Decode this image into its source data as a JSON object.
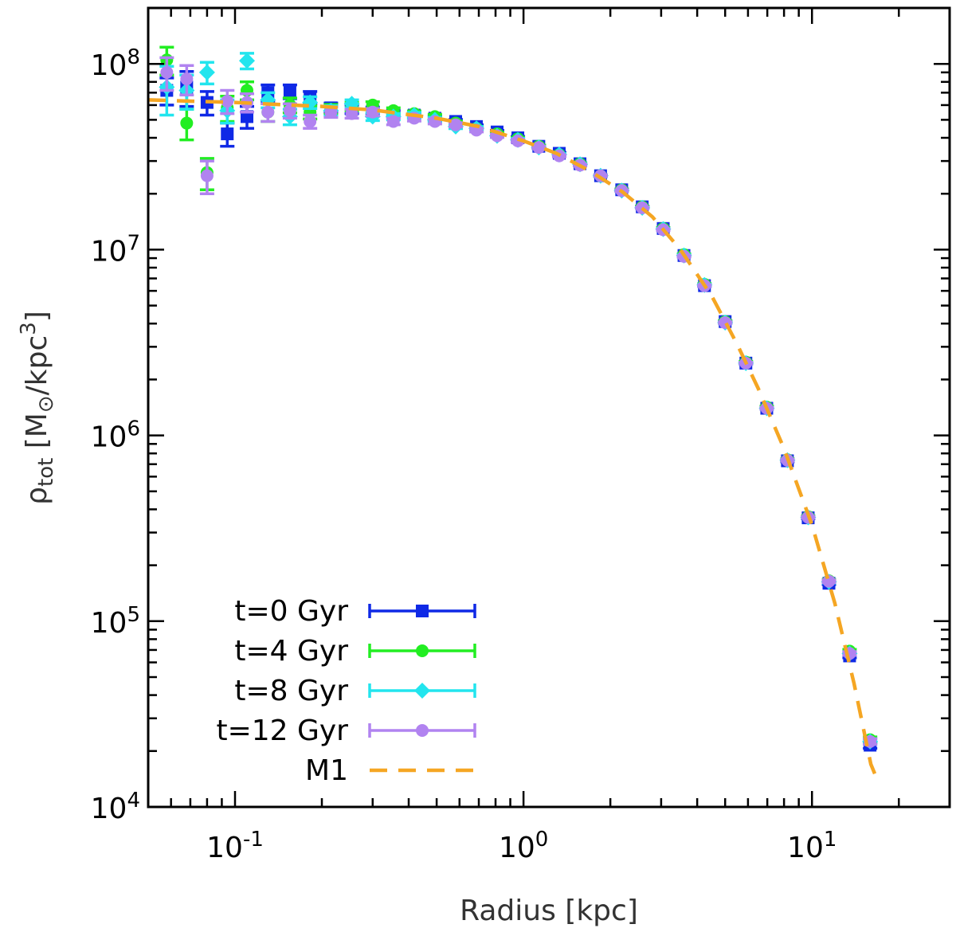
{
  "chart_data": {
    "type": "scatter",
    "xlabel": "Radius [kpc]",
    "ylabel_main": "ρ",
    "ylabel_sub": "tot",
    "ylabel_unit_open": " [M",
    "ylabel_unit_sun": "⊙",
    "ylabel_unit_mid": "/kpc",
    "ylabel_unit_sup": "3",
    "ylabel_unit_close": "]",
    "x_scale": "log",
    "y_scale": "log",
    "xlim": [
      0.05,
      30
    ],
    "ylim": [
      10000,
      200000000
    ],
    "x_ticks": [
      {
        "value": 0.1,
        "base": "10",
        "exp": "-1"
      },
      {
        "value": 1,
        "base": "10",
        "exp": "0"
      },
      {
        "value": 10,
        "base": "10",
        "exp": "1"
      }
    ],
    "y_ticks": [
      {
        "value": 10000,
        "base": "10",
        "exp": "4"
      },
      {
        "value": 100000,
        "base": "10",
        "exp": "5"
      },
      {
        "value": 1000000,
        "base": "10",
        "exp": "6"
      },
      {
        "value": 10000000,
        "base": "10",
        "exp": "7"
      },
      {
        "value": 100000000,
        "base": "10",
        "exp": "8"
      }
    ],
    "legend_position": "bottom-left",
    "grid": false,
    "series": [
      {
        "name": "t=0 Gyr",
        "color": "#0f29e6",
        "marker": "square",
        "points": [
          {
            "x": 0.058,
            "y": 72000000,
            "err": 12000000
          },
          {
            "x": 0.068,
            "y": 75000000,
            "err": 16000000
          },
          {
            "x": 0.08,
            "y": 62000000,
            "err": 9000000
          },
          {
            "x": 0.094,
            "y": 42000000,
            "err": 6000000
          },
          {
            "x": 0.11,
            "y": 52000000,
            "err": 7000000
          },
          {
            "x": 0.13,
            "y": 70000000,
            "err": 7000000
          },
          {
            "x": 0.155,
            "y": 71000000,
            "err": 6000000
          },
          {
            "x": 0.182,
            "y": 66000000,
            "err": 5000000
          },
          {
            "x": 0.215,
            "y": 58000000,
            "err": 3500000
          },
          {
            "x": 0.254,
            "y": 57000000,
            "err": 3000000
          },
          {
            "x": 0.3,
            "y": 56000000,
            "err": 2500000
          },
          {
            "x": 0.354,
            "y": 54000000,
            "err": 2000000
          },
          {
            "x": 0.418,
            "y": 53000000,
            "err": 1800000
          },
          {
            "x": 0.493,
            "y": 51000000,
            "err": 1500000
          },
          {
            "x": 0.582,
            "y": 49000000,
            "err": 1200000
          },
          {
            "x": 0.687,
            "y": 46000000,
            "err": 1000000
          },
          {
            "x": 0.81,
            "y": 43000000,
            "err": 800000
          },
          {
            "x": 0.956,
            "y": 40000000,
            "err": 700000
          },
          {
            "x": 1.13,
            "y": 36000000,
            "err": 500000
          },
          {
            "x": 1.33,
            "y": 33000000,
            "err": 400000
          },
          {
            "x": 1.57,
            "y": 29000000,
            "err": 300000
          },
          {
            "x": 1.85,
            "y": 25000000,
            "err": 250000
          },
          {
            "x": 2.19,
            "y": 21000000,
            "err": 200000
          },
          {
            "x": 2.58,
            "y": 17000000,
            "err": 150000
          },
          {
            "x": 3.05,
            "y": 13000000,
            "err": 100000
          },
          {
            "x": 3.6,
            "y": 9300000,
            "err": 80000
          },
          {
            "x": 4.24,
            "y": 6400000,
            "err": 60000
          },
          {
            "x": 5.0,
            "y": 4100000,
            "err": 40000
          },
          {
            "x": 5.9,
            "y": 2450000,
            "err": 25000
          },
          {
            "x": 6.97,
            "y": 1400000,
            "err": 15000
          },
          {
            "x": 8.22,
            "y": 730000,
            "err": 8000
          },
          {
            "x": 9.7,
            "y": 360000,
            "err": 4000
          },
          {
            "x": 11.45,
            "y": 160000,
            "err": 2500
          },
          {
            "x": 13.5,
            "y": 65000,
            "err": 1500
          },
          {
            "x": 15.9,
            "y": 21500,
            "err": 800
          }
        ]
      },
      {
        "name": "t=4 Gyr",
        "color": "#22ee22",
        "marker": "circle",
        "points": [
          {
            "x": 0.058,
            "y": 105000000,
            "err": 18000000
          },
          {
            "x": 0.068,
            "y": 48000000,
            "err": 9000000
          },
          {
            "x": 0.08,
            "y": 26000000,
            "err": 5000000
          },
          {
            "x": 0.094,
            "y": 58000000,
            "err": 9000000
          },
          {
            "x": 0.11,
            "y": 72000000,
            "err": 8000000
          },
          {
            "x": 0.13,
            "y": 55000000,
            "err": 6000000
          },
          {
            "x": 0.155,
            "y": 60000000,
            "err": 5500000
          },
          {
            "x": 0.182,
            "y": 55000000,
            "err": 4500000
          },
          {
            "x": 0.215,
            "y": 57000000,
            "err": 3500000
          },
          {
            "x": 0.254,
            "y": 59000000,
            "err": 3000000
          },
          {
            "x": 0.3,
            "y": 60000000,
            "err": 2500000
          },
          {
            "x": 0.354,
            "y": 56000000,
            "err": 2000000
          },
          {
            "x": 0.418,
            "y": 54000000,
            "err": 1800000
          },
          {
            "x": 0.493,
            "y": 52000000,
            "err": 1500000
          },
          {
            "x": 0.582,
            "y": 48000000,
            "err": 1200000
          },
          {
            "x": 0.687,
            "y": 45000000,
            "err": 1000000
          },
          {
            "x": 0.81,
            "y": 42000000,
            "err": 800000
          },
          {
            "x": 0.956,
            "y": 39500000,
            "err": 700000
          },
          {
            "x": 1.13,
            "y": 36000000,
            "err": 500000
          },
          {
            "x": 1.33,
            "y": 32500000,
            "err": 400000
          },
          {
            "x": 1.57,
            "y": 29000000,
            "err": 300000
          },
          {
            "x": 1.85,
            "y": 25000000,
            "err": 250000
          },
          {
            "x": 2.19,
            "y": 21000000,
            "err": 200000
          },
          {
            "x": 2.58,
            "y": 17000000,
            "err": 150000
          },
          {
            "x": 3.05,
            "y": 13000000,
            "err": 100000
          },
          {
            "x": 3.6,
            "y": 9400000,
            "err": 80000
          },
          {
            "x": 4.24,
            "y": 6500000,
            "err": 60000
          },
          {
            "x": 5.0,
            "y": 4100000,
            "err": 40000
          },
          {
            "x": 5.9,
            "y": 2480000,
            "err": 25000
          },
          {
            "x": 6.97,
            "y": 1420000,
            "err": 15000
          },
          {
            "x": 8.22,
            "y": 740000,
            "err": 8000
          },
          {
            "x": 9.7,
            "y": 365000,
            "err": 4000
          },
          {
            "x": 11.45,
            "y": 165000,
            "err": 2500
          },
          {
            "x": 13.5,
            "y": 69000,
            "err": 1500
          },
          {
            "x": 15.9,
            "y": 23000,
            "err": 800
          }
        ]
      },
      {
        "name": "t=8 Gyr",
        "color": "#22e5ee",
        "marker": "diamond",
        "points": [
          {
            "x": 0.058,
            "y": 75000000,
            "err": 22000000
          },
          {
            "x": 0.068,
            "y": 72000000,
            "err": 15000000
          },
          {
            "x": 0.08,
            "y": 90000000,
            "err": 12000000
          },
          {
            "x": 0.094,
            "y": 56000000,
            "err": 8000000
          },
          {
            "x": 0.11,
            "y": 104000000,
            "err": 10000000
          },
          {
            "x": 0.13,
            "y": 64000000,
            "err": 6000000
          },
          {
            "x": 0.155,
            "y": 52000000,
            "err": 5000000
          },
          {
            "x": 0.182,
            "y": 62000000,
            "err": 4500000
          },
          {
            "x": 0.215,
            "y": 56000000,
            "err": 3500000
          },
          {
            "x": 0.254,
            "y": 61000000,
            "err": 3000000
          },
          {
            "x": 0.3,
            "y": 52000000,
            "err": 2500000
          },
          {
            "x": 0.354,
            "y": 52000000,
            "err": 2000000
          },
          {
            "x": 0.418,
            "y": 53000000,
            "err": 1800000
          },
          {
            "x": 0.493,
            "y": 50000000,
            "err": 1500000
          },
          {
            "x": 0.582,
            "y": 46000000,
            "err": 1200000
          },
          {
            "x": 0.687,
            "y": 45000000,
            "err": 1000000
          },
          {
            "x": 0.81,
            "y": 41000000,
            "err": 800000
          },
          {
            "x": 0.956,
            "y": 39000000,
            "err": 700000
          },
          {
            "x": 1.13,
            "y": 35500000,
            "err": 500000
          },
          {
            "x": 1.33,
            "y": 32500000,
            "err": 400000
          },
          {
            "x": 1.57,
            "y": 28800000,
            "err": 300000
          },
          {
            "x": 1.85,
            "y": 25000000,
            "err": 250000
          },
          {
            "x": 2.19,
            "y": 20800000,
            "err": 200000
          },
          {
            "x": 2.58,
            "y": 16800000,
            "err": 150000
          },
          {
            "x": 3.05,
            "y": 12900000,
            "err": 100000
          },
          {
            "x": 3.6,
            "y": 9300000,
            "err": 80000
          },
          {
            "x": 4.24,
            "y": 6450000,
            "err": 60000
          },
          {
            "x": 5.0,
            "y": 4050000,
            "err": 40000
          },
          {
            "x": 5.9,
            "y": 2450000,
            "err": 25000
          },
          {
            "x": 6.97,
            "y": 1400000,
            "err": 15000
          },
          {
            "x": 8.22,
            "y": 735000,
            "err": 8000
          },
          {
            "x": 9.7,
            "y": 362000,
            "err": 4000
          },
          {
            "x": 11.45,
            "y": 163000,
            "err": 2500
          },
          {
            "x": 13.5,
            "y": 67000,
            "err": 1500
          },
          {
            "x": 15.9,
            "y": 22500,
            "err": 800
          }
        ]
      },
      {
        "name": "t=12 Gyr",
        "color": "#b183f0",
        "marker": "circle",
        "points": [
          {
            "x": 0.058,
            "y": 90000000,
            "err": 18000000
          },
          {
            "x": 0.068,
            "y": 83000000,
            "err": 15000000
          },
          {
            "x": 0.08,
            "y": 25000000,
            "err": 5000000
          },
          {
            "x": 0.094,
            "y": 63000000,
            "err": 9000000
          },
          {
            "x": 0.11,
            "y": 62000000,
            "err": 7000000
          },
          {
            "x": 0.13,
            "y": 55000000,
            "err": 6000000
          },
          {
            "x": 0.155,
            "y": 56000000,
            "err": 5000000
          },
          {
            "x": 0.182,
            "y": 49000000,
            "err": 4000000
          },
          {
            "x": 0.215,
            "y": 55000000,
            "err": 3500000
          },
          {
            "x": 0.254,
            "y": 54000000,
            "err": 3000000
          },
          {
            "x": 0.3,
            "y": 55000000,
            "err": 2500000
          },
          {
            "x": 0.354,
            "y": 49000000,
            "err": 2000000
          },
          {
            "x": 0.418,
            "y": 51000000,
            "err": 1800000
          },
          {
            "x": 0.493,
            "y": 49000000,
            "err": 1500000
          },
          {
            "x": 0.582,
            "y": 47000000,
            "err": 1200000
          },
          {
            "x": 0.687,
            "y": 44000000,
            "err": 1000000
          },
          {
            "x": 0.81,
            "y": 41000000,
            "err": 800000
          },
          {
            "x": 0.956,
            "y": 38500000,
            "err": 700000
          },
          {
            "x": 1.13,
            "y": 35500000,
            "err": 500000
          },
          {
            "x": 1.33,
            "y": 32000000,
            "err": 400000
          },
          {
            "x": 1.57,
            "y": 28500000,
            "err": 300000
          },
          {
            "x": 1.85,
            "y": 25000000,
            "err": 250000
          },
          {
            "x": 2.19,
            "y": 20800000,
            "err": 200000
          },
          {
            "x": 2.58,
            "y": 16800000,
            "err": 150000
          },
          {
            "x": 3.05,
            "y": 12800000,
            "err": 100000
          },
          {
            "x": 3.6,
            "y": 9200000,
            "err": 80000
          },
          {
            "x": 4.24,
            "y": 6400000,
            "err": 60000
          },
          {
            "x": 5.0,
            "y": 4050000,
            "err": 40000
          },
          {
            "x": 5.9,
            "y": 2450000,
            "err": 25000
          },
          {
            "x": 6.97,
            "y": 1400000,
            "err": 15000
          },
          {
            "x": 8.22,
            "y": 735000,
            "err": 8000
          },
          {
            "x": 9.7,
            "y": 362000,
            "err": 4000
          },
          {
            "x": 11.45,
            "y": 164000,
            "err": 2500
          },
          {
            "x": 13.5,
            "y": 67000,
            "err": 1500
          },
          {
            "x": 15.9,
            "y": 22500,
            "err": 800
          }
        ]
      }
    ],
    "model": {
      "name": "M1",
      "color": "#f5a623",
      "style": "dashed",
      "points": [
        {
          "x": 0.05,
          "y": 64000000
        },
        {
          "x": 0.1,
          "y": 62000000
        },
        {
          "x": 0.2,
          "y": 59000000
        },
        {
          "x": 0.3,
          "y": 56500000
        },
        {
          "x": 0.5,
          "y": 51000000
        },
        {
          "x": 0.7,
          "y": 46000000
        },
        {
          "x": 1.0,
          "y": 38500000
        },
        {
          "x": 1.3,
          "y": 33000000
        },
        {
          "x": 1.7,
          "y": 26500000
        },
        {
          "x": 2.2,
          "y": 20500000
        },
        {
          "x": 2.8,
          "y": 15000000
        },
        {
          "x": 3.5,
          "y": 10000000
        },
        {
          "x": 4.5,
          "y": 5600000
        },
        {
          "x": 5.5,
          "y": 3100000
        },
        {
          "x": 6.5,
          "y": 1800000
        },
        {
          "x": 8.0,
          "y": 850000
        },
        {
          "x": 10.0,
          "y": 330000
        },
        {
          "x": 12.0,
          "y": 125000
        },
        {
          "x": 14.0,
          "y": 46000
        },
        {
          "x": 16.0,
          "y": 17000
        },
        {
          "x": 17.0,
          "y": 13500
        }
      ]
    }
  }
}
